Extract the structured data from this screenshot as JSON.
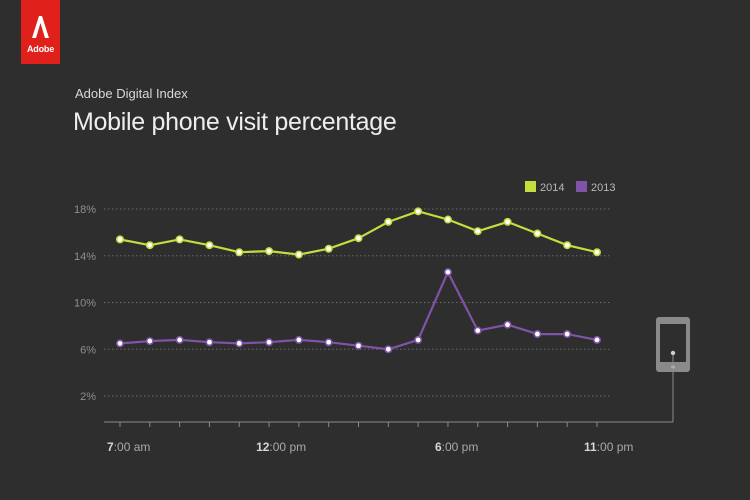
{
  "brand": {
    "logo_text": "Adobe",
    "color": "#e0201b"
  },
  "header": {
    "subtitle": "Adobe Digital Index",
    "title": "Mobile phone visit percentage"
  },
  "chart_data": {
    "type": "line",
    "title": "Mobile phone visit percentage",
    "ylim": [
      0,
      20
    ],
    "yticks": [
      2,
      6,
      10,
      14,
      18
    ],
    "ytick_labels": [
      "2%",
      "6%",
      "10%",
      "14%",
      "18%"
    ],
    "x_hours": [
      7,
      8,
      9,
      10,
      11,
      12,
      13,
      14,
      15,
      16,
      17,
      18,
      19,
      20,
      21,
      22,
      23
    ],
    "x_tick_positions": [
      7,
      12,
      18,
      23
    ],
    "x_tick_labels": [
      {
        "bold": "7",
        "rest": ":00 am"
      },
      {
        "bold": "12",
        "rest": ":00 pm"
      },
      {
        "bold": "6",
        "rest": ":00 pm"
      },
      {
        "bold": "11",
        "rest": ":00 pm"
      }
    ],
    "legend_position": "top-right",
    "grid": true,
    "series": [
      {
        "name": "2014",
        "color": "#c4dc3e",
        "values": [
          15.4,
          14.9,
          15.4,
          14.9,
          14.3,
          14.4,
          14.1,
          14.6,
          15.5,
          16.9,
          17.8,
          17.1,
          16.1,
          16.9,
          15.9,
          14.9,
          14.3
        ]
      },
      {
        "name": "2013",
        "color": "#7f53a8",
        "values": [
          6.5,
          6.7,
          6.8,
          6.6,
          6.5,
          6.6,
          6.8,
          6.6,
          6.3,
          6.0,
          6.8,
          12.6,
          7.6,
          8.1,
          7.3,
          7.3,
          6.8
        ]
      }
    ]
  },
  "device_icon": "tablet-icon"
}
